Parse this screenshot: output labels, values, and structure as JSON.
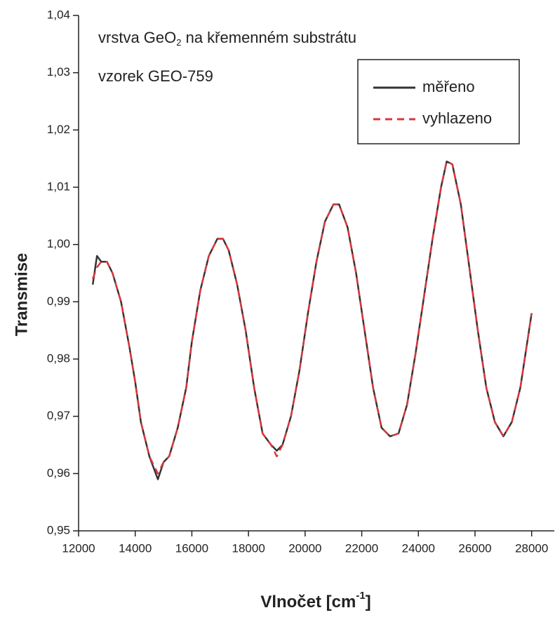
{
  "chart_data": {
    "type": "line",
    "annotation": {
      "text": "vrstva GeO",
      "sub": "2",
      "rest": " na křemenném substrátu"
    },
    "annotation2": "vzorek GEO-759",
    "x_label": {
      "text": "Vlnočet [cm",
      "sup": "-1",
      "end": "]"
    },
    "y_label": "Transmise",
    "x": [
      12500,
      12650,
      12800,
      13000,
      13200,
      13500,
      13800,
      14000,
      14200,
      14500,
      14800,
      15000,
      15200,
      15500,
      15800,
      16000,
      16300,
      16600,
      16900,
      17100,
      17300,
      17600,
      17900,
      18200,
      18500,
      18800,
      19000,
      19200,
      19500,
      19800,
      20100,
      20400,
      20700,
      21000,
      21200,
      21500,
      21800,
      22100,
      22400,
      22700,
      23000,
      23300,
      23600,
      23900,
      24200,
      24500,
      24800,
      25000,
      25200,
      25500,
      25800,
      26100,
      26400,
      26700,
      27000,
      27300,
      27600,
      28000
    ],
    "series": [
      {
        "name": "měřeno",
        "color": "#333333",
        "dash": false,
        "values": [
          0.993,
          0.998,
          0.997,
          0.997,
          0.995,
          0.99,
          0.982,
          0.976,
          0.969,
          0.963,
          0.959,
          0.962,
          0.963,
          0.968,
          0.975,
          0.983,
          0.992,
          0.998,
          1.001,
          1.001,
          0.999,
          0.993,
          0.985,
          0.975,
          0.967,
          0.965,
          0.964,
          0.965,
          0.97,
          0.978,
          0.988,
          0.997,
          1.004,
          1.007,
          1.007,
          1.003,
          0.995,
          0.985,
          0.975,
          0.968,
          0.9665,
          0.967,
          0.972,
          0.981,
          0.991,
          1.001,
          1.01,
          1.0145,
          1.014,
          1.007,
          0.996,
          0.985,
          0.975,
          0.969,
          0.9665,
          0.969,
          0.975,
          0.988
        ]
      },
      {
        "name": "vyhlazeno",
        "color": "#d9373c",
        "dash": true,
        "values": [
          0.994,
          0.996,
          0.997,
          0.997,
          0.995,
          0.99,
          0.982,
          0.976,
          0.969,
          0.963,
          0.96,
          0.962,
          0.963,
          0.968,
          0.975,
          0.983,
          0.992,
          0.998,
          1.001,
          1.001,
          0.999,
          0.993,
          0.985,
          0.975,
          0.967,
          0.965,
          0.963,
          0.965,
          0.97,
          0.978,
          0.988,
          0.997,
          1.004,
          1.007,
          1.007,
          1.003,
          0.995,
          0.985,
          0.975,
          0.968,
          0.9665,
          0.967,
          0.972,
          0.981,
          0.991,
          1.001,
          1.01,
          1.0145,
          1.014,
          1.007,
          0.996,
          0.985,
          0.975,
          0.969,
          0.9665,
          0.969,
          0.975,
          0.988
        ]
      }
    ],
    "xlim": [
      12000,
      28800
    ],
    "ylim": [
      0.95,
      1.04
    ],
    "xticks": [
      12000,
      14000,
      16000,
      18000,
      20000,
      22000,
      24000,
      26000,
      28000
    ],
    "yticks": [
      {
        "value": 0.95,
        "label": "0,95"
      },
      {
        "value": 0.96,
        "label": "0,96"
      },
      {
        "value": 0.97,
        "label": "0,97"
      },
      {
        "value": 0.98,
        "label": "0,98"
      },
      {
        "value": 0.99,
        "label": "0,99"
      },
      {
        "value": 1.0,
        "label": "1,00"
      },
      {
        "value": 1.01,
        "label": "1,01"
      },
      {
        "value": 1.02,
        "label": "1,02"
      },
      {
        "value": 1.03,
        "label": "1,03"
      },
      {
        "value": 1.04,
        "label": "1,04"
      }
    ],
    "legend": "upper right"
  }
}
